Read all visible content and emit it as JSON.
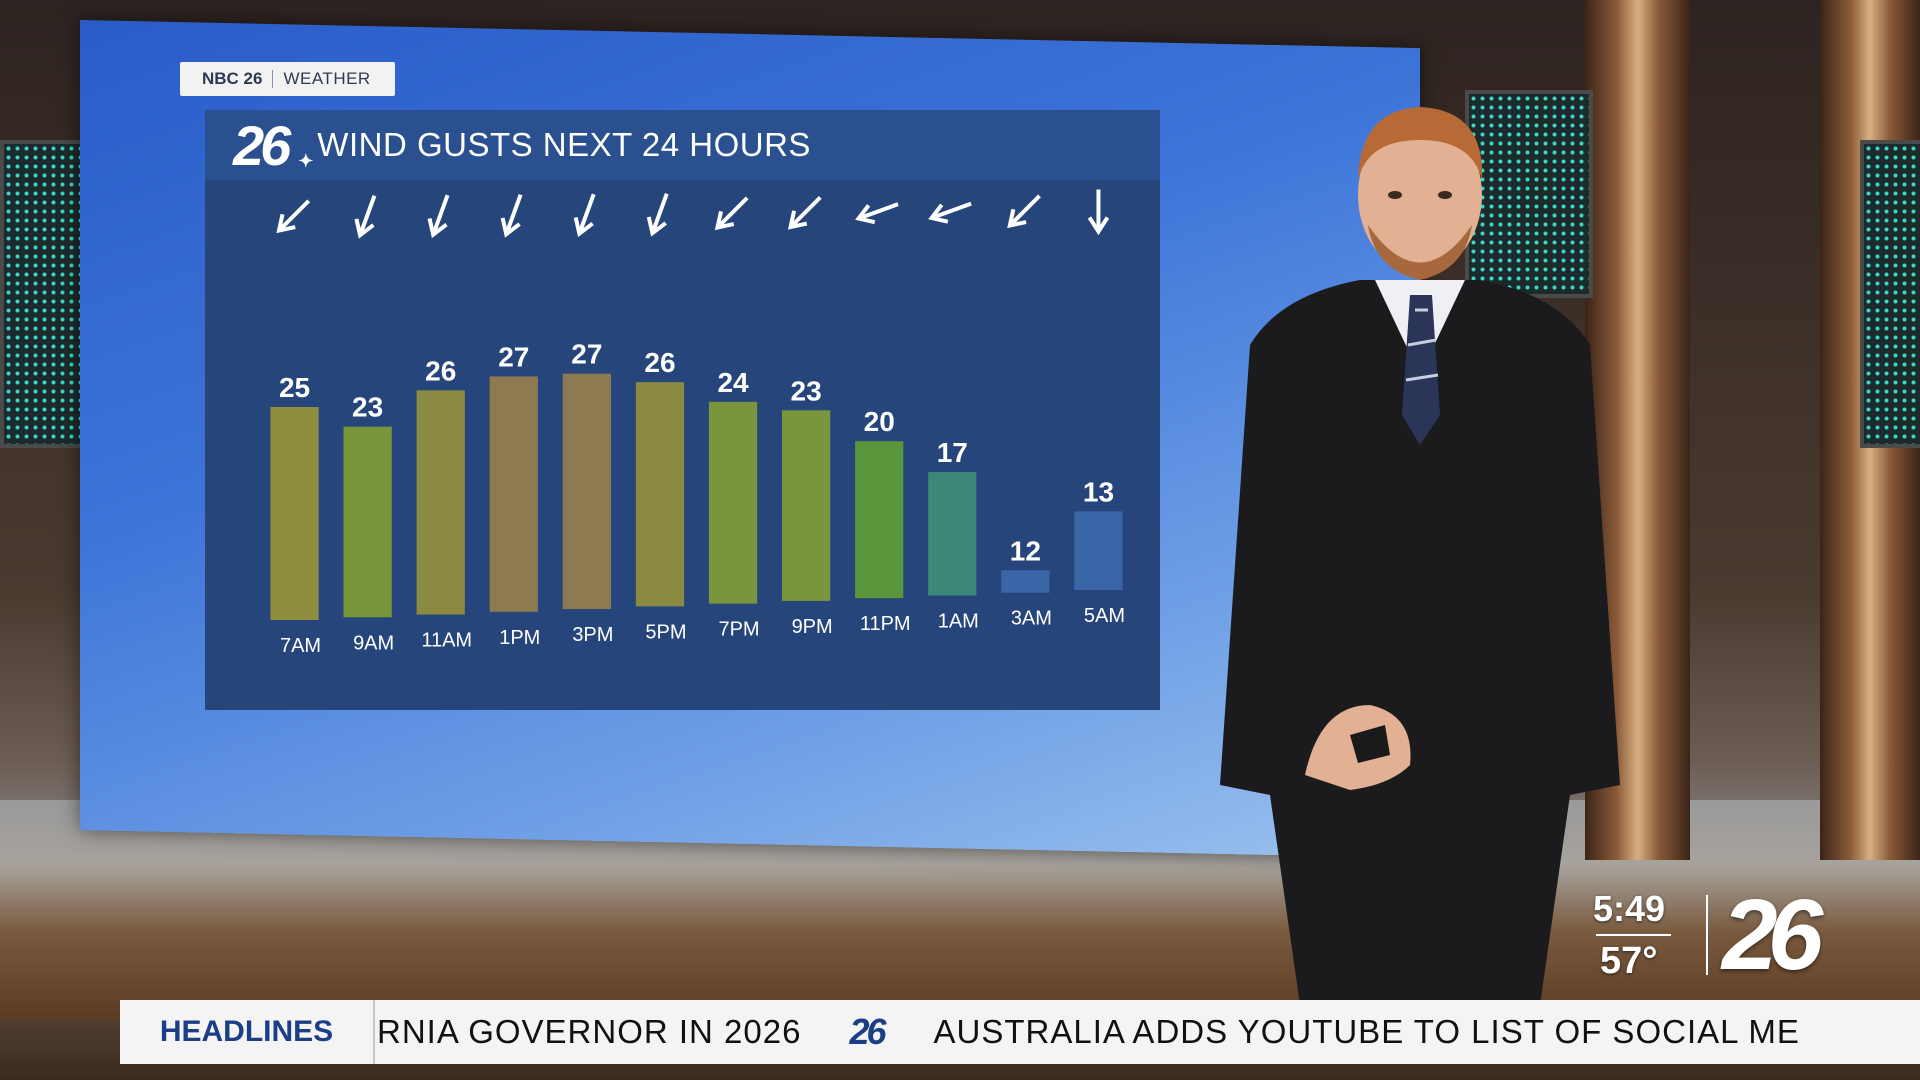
{
  "brand_tag": {
    "station": "NBC 26",
    "section": "WEATHER"
  },
  "title_bar": {
    "logo": "26",
    "title": "WIND GUSTS NEXT 24 HOURS"
  },
  "chart_data": {
    "type": "bar",
    "title": "WIND GUSTS NEXT 24 HOURS",
    "categories": [
      "7AM",
      "9AM",
      "11AM",
      "1PM",
      "3PM",
      "5PM",
      "7PM",
      "9PM",
      "11PM",
      "1AM",
      "3AM",
      "5AM"
    ],
    "values": [
      25,
      23,
      26,
      27,
      27,
      26,
      24,
      23,
      20,
      17,
      12,
      13
    ],
    "wind_direction_arrows": [
      "southwest",
      "south-southwest",
      "south-southwest",
      "south-southwest",
      "south-southwest",
      "south-southwest",
      "southwest",
      "southwest",
      "west-southwest",
      "west-southwest",
      "southwest",
      "south"
    ],
    "arrow_angles_deg": [
      225,
      200,
      200,
      200,
      200,
      200,
      225,
      225,
      250,
      250,
      225,
      180
    ],
    "colors": [
      "#8e8e3e",
      "#79963c",
      "#8a8b40",
      "#8e7a50",
      "#8e7a50",
      "#8a8b40",
      "#79963c",
      "#79963c",
      "#5a963c",
      "#3c8878",
      "#3a66a8",
      "#3a66a8"
    ],
    "xlabel": "",
    "ylabel": "",
    "grid": false,
    "legend": "none"
  },
  "bug": {
    "time": "5:49",
    "temp": "57°",
    "logo": "26"
  },
  "ticker": {
    "label": "HEADLINES",
    "item1": "RNIA GOVERNOR IN 2026",
    "logo": "26",
    "item2": "AUSTRALIA ADDS YOUTUBE TO LIST OF SOCIAL ME"
  }
}
